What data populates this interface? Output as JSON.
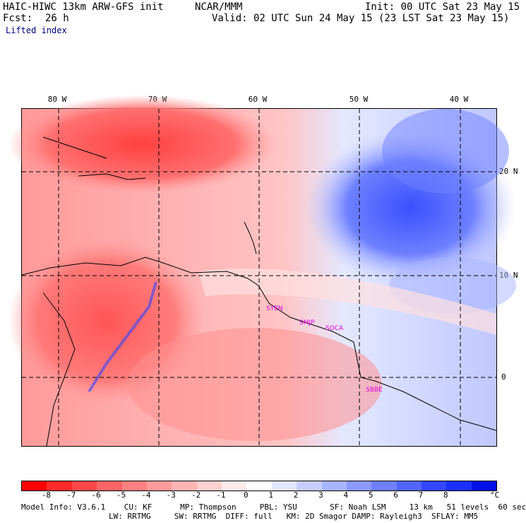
{
  "header": {
    "model": "HAIC-HIWC 13km ARW-GFS init",
    "center": "NCAR/MMM",
    "init": "Init: 00 UTC Sat 23 May 15",
    "fcst_label": "Fcst:",
    "fcst_value": "26 h",
    "valid": "Valid: 02 UTC Sun 24 May 15 (23 LST Sat 23 May 15)",
    "field": "Lifted index"
  },
  "map": {
    "lon_labels": [
      "80 W",
      "70 W",
      "60 W",
      "50 W",
      "40 W"
    ],
    "lat_labels": [
      "20 N",
      "10 N",
      "0"
    ],
    "stations": [
      "SYEN",
      "SMJP",
      "SOCA",
      "SBBE"
    ]
  },
  "colorbar": {
    "tick_labels": [
      "-8",
      "-7",
      "-6",
      "-5",
      "-4",
      "-3",
      "-2",
      "-1",
      "0",
      "1",
      "2",
      "3",
      "4",
      "5",
      "6",
      "7",
      "8"
    ],
    "unit": "°C",
    "colors": [
      "#ff0000",
      "#ff2a2a",
      "#ff4848",
      "#ff6464",
      "#ff8080",
      "#ff9a9a",
      "#ffb4b4",
      "#ffd0d0",
      "#ffeaea",
      "#ffffff",
      "#e2e6ff",
      "#c6ceff",
      "#a8b4ff",
      "#8c9aff",
      "#6e80ff",
      "#5066ff",
      "#3246ff",
      "#1a30ff",
      "#0010e8"
    ]
  },
  "model_info": {
    "line1": "Model Info: V3.6.1    CU: KF      MP: Thompson     PBL: YSU       SF: Noah LSM     13 km   51 levels  60 sec",
    "line2": "LW: RRTMG     SW: RRTMG  DIFF: full   KM: 2D Smagor DAMP: Rayleigh3  SFLAY: MM5"
  }
}
